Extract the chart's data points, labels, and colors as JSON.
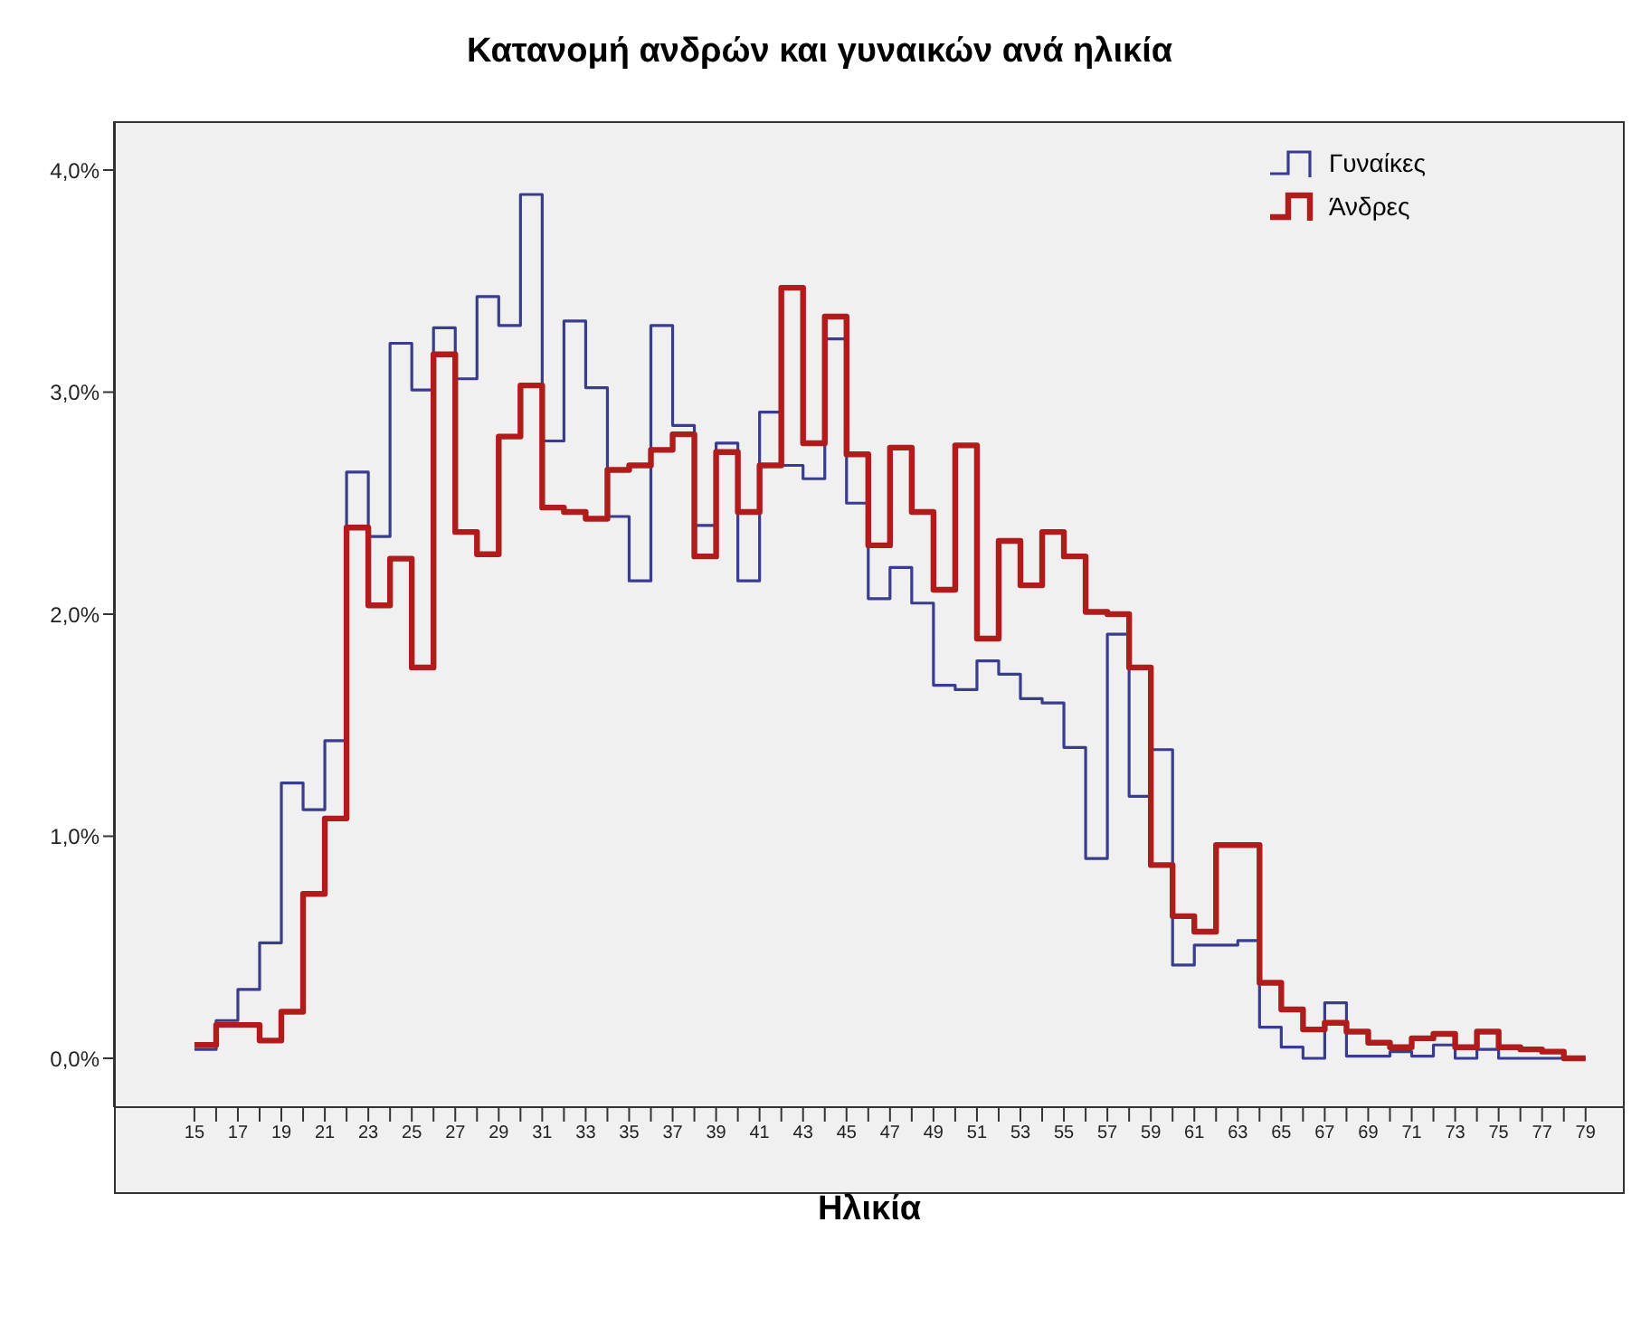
{
  "chart_data": {
    "type": "histogram",
    "title": "Κατανομή ανδρών και γυναικών ανά ηλικία",
    "xlabel": "Ηλικία",
    "bins": [
      15,
      16,
      17,
      18,
      19,
      20,
      21,
      22,
      23,
      24,
      25,
      26,
      27,
      28,
      29,
      30,
      31,
      32,
      33,
      34,
      35,
      36,
      37,
      38,
      39,
      40,
      41,
      42,
      43,
      44,
      45,
      46,
      47,
      48,
      49,
      50,
      51,
      52,
      53,
      54,
      55,
      56,
      57,
      58,
      59,
      60,
      61,
      62,
      63,
      64,
      65,
      66,
      67,
      68,
      69,
      70,
      71,
      72,
      73,
      74,
      75,
      76,
      77,
      78,
      79
    ],
    "series": [
      {
        "name": "Γυναίκες",
        "color": "#3a3d8f",
        "values": [
          0.04,
          0.17,
          0.31,
          0.52,
          1.24,
          1.12,
          1.43,
          2.64,
          2.35,
          3.22,
          3.01,
          3.29,
          3.06,
          3.43,
          3.3,
          3.89,
          2.78,
          3.32,
          3.02,
          2.44,
          2.15,
          3.3,
          2.85,
          2.4,
          2.77,
          2.15,
          2.91,
          2.67,
          2.61,
          3.24,
          2.5,
          2.07,
          2.21,
          2.05,
          1.68,
          1.66,
          1.79,
          1.73,
          1.62,
          1.6,
          1.4,
          0.9,
          1.91,
          1.18,
          1.39,
          0.42,
          0.51,
          0.51,
          0.53,
          0.14,
          0.05,
          0.0,
          0.25,
          0.01,
          0.01,
          0.03,
          0.01,
          0.06,
          0.0,
          0.04,
          0.0,
          0.0,
          0.0,
          0.0
        ]
      },
      {
        "name": "Άνδρες",
        "color": "#b01c1c",
        "values": [
          0.06,
          0.15,
          0.15,
          0.08,
          0.21,
          0.74,
          1.08,
          2.39,
          2.04,
          2.25,
          1.76,
          3.17,
          2.37,
          2.27,
          2.8,
          3.03,
          2.48,
          2.46,
          2.43,
          2.65,
          2.67,
          2.74,
          2.81,
          2.26,
          2.73,
          2.46,
          2.67,
          3.47,
          2.77,
          3.34,
          2.72,
          2.31,
          2.75,
          2.46,
          2.11,
          2.76,
          1.89,
          2.33,
          2.13,
          2.37,
          2.26,
          2.01,
          2.0,
          1.76,
          0.87,
          0.64,
          0.57,
          0.96,
          0.96,
          0.34,
          0.22,
          0.13,
          0.16,
          0.12,
          0.07,
          0.05,
          0.09,
          0.11,
          0.05,
          0.12,
          0.05,
          0.04,
          0.03,
          0.0
        ]
      }
    ],
    "xlim": [
      11.3,
      80.8
    ],
    "xticks": [
      15,
      {
        "value": 16,
        "label": null
      },
      17,
      {
        "value": 18,
        "label": null
      },
      19,
      {
        "value": 20,
        "label": null
      },
      21,
      {
        "value": 22,
        "label": null
      },
      23,
      {
        "value": 24,
        "label": null
      },
      25,
      {
        "value": 26,
        "label": null
      },
      27,
      {
        "value": 28,
        "label": null
      },
      29,
      {
        "value": 30,
        "label": null
      },
      31,
      {
        "value": 32,
        "label": null
      },
      33,
      {
        "value": 34,
        "label": null
      },
      35,
      {
        "value": 36,
        "label": null
      },
      37,
      {
        "value": 38,
        "label": null
      },
      39,
      {
        "value": 40,
        "label": null
      },
      41,
      {
        "value": 42,
        "label": null
      },
      43,
      {
        "value": 44,
        "label": null
      },
      45,
      {
        "value": 46,
        "label": null
      },
      47,
      {
        "value": 48,
        "label": null
      },
      49,
      {
        "value": 50,
        "label": null
      },
      51,
      {
        "value": 52,
        "label": null
      },
      53,
      {
        "value": 54,
        "label": null
      },
      55,
      {
        "value": 56,
        "label": null
      },
      57,
      {
        "value": 58,
        "label": null
      },
      59,
      {
        "value": 60,
        "label": null
      },
      61,
      {
        "value": 62,
        "label": null
      },
      63,
      {
        "value": 64,
        "label": null
      },
      65,
      {
        "value": 66,
        "label": null
      },
      67,
      {
        "value": 68,
        "label": null
      },
      69,
      {
        "value": 70,
        "label": null
      },
      71,
      {
        "value": 72,
        "label": null
      },
      73,
      {
        "value": 74,
        "label": null
      },
      75,
      {
        "value": 76,
        "label": null
      },
      77,
      {
        "value": 78,
        "label": null
      },
      79
    ],
    "ylim": [
      -0.22,
      4.22
    ],
    "yticks": [
      {
        "value": 0,
        "label": "0,0%"
      },
      {
        "value": 1,
        "label": "1,0%"
      },
      {
        "value": 2,
        "label": "2,0%"
      },
      {
        "value": 3,
        "label": "3,0%"
      },
      {
        "value": 4,
        "label": "4,0%"
      }
    ],
    "grid": false,
    "legend": "top right"
  }
}
